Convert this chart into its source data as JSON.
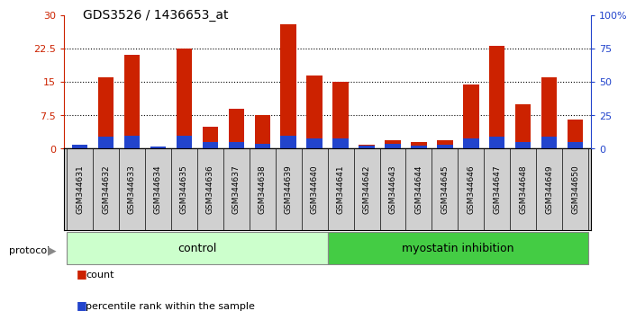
{
  "title": "GDS3526 / 1436653_at",
  "samples": [
    "GSM344631",
    "GSM344632",
    "GSM344633",
    "GSM344634",
    "GSM344635",
    "GSM344636",
    "GSM344637",
    "GSM344638",
    "GSM344639",
    "GSM344640",
    "GSM344641",
    "GSM344642",
    "GSM344643",
    "GSM344644",
    "GSM344645",
    "GSM344646",
    "GSM344647",
    "GSM344648",
    "GSM344649",
    "GSM344650"
  ],
  "count": [
    1.0,
    16.0,
    21.0,
    0.2,
    22.5,
    5.0,
    9.0,
    7.5,
    28.0,
    16.5,
    15.0,
    1.0,
    2.0,
    1.5,
    2.0,
    14.5,
    23.0,
    10.0,
    16.0,
    6.5
  ],
  "percentile": [
    3.0,
    9.0,
    10.0,
    1.5,
    10.0,
    5.0,
    5.0,
    4.0,
    10.0,
    8.0,
    8.0,
    2.5,
    4.0,
    2.5,
    3.0,
    8.0,
    9.0,
    5.0,
    9.0,
    5.0
  ],
  "red_color": "#cc2200",
  "blue_color": "#2244cc",
  "left_ylim": [
    0,
    30
  ],
  "right_ylim": [
    0,
    100
  ],
  "left_yticks": [
    0,
    7.5,
    15,
    22.5,
    30
  ],
  "right_yticks": [
    0,
    25,
    50,
    75,
    100
  ],
  "left_yticklabels": [
    "0",
    "7.5",
    "15",
    "22.5",
    "30"
  ],
  "right_yticklabels": [
    "0",
    "25",
    "50",
    "75",
    "100%"
  ],
  "control_count": 10,
  "myostatin_count": 10,
  "control_label": "control",
  "myostatin_label": "myostatin inhibition",
  "protocol_label": "protocol",
  "legend_count": "count",
  "legend_percentile": "percentile rank within the sample",
  "control_bg": "#ccffcc",
  "myostatin_bg": "#44cc44",
  "label_bg": "#d0d0d0",
  "bar_width": 0.6
}
